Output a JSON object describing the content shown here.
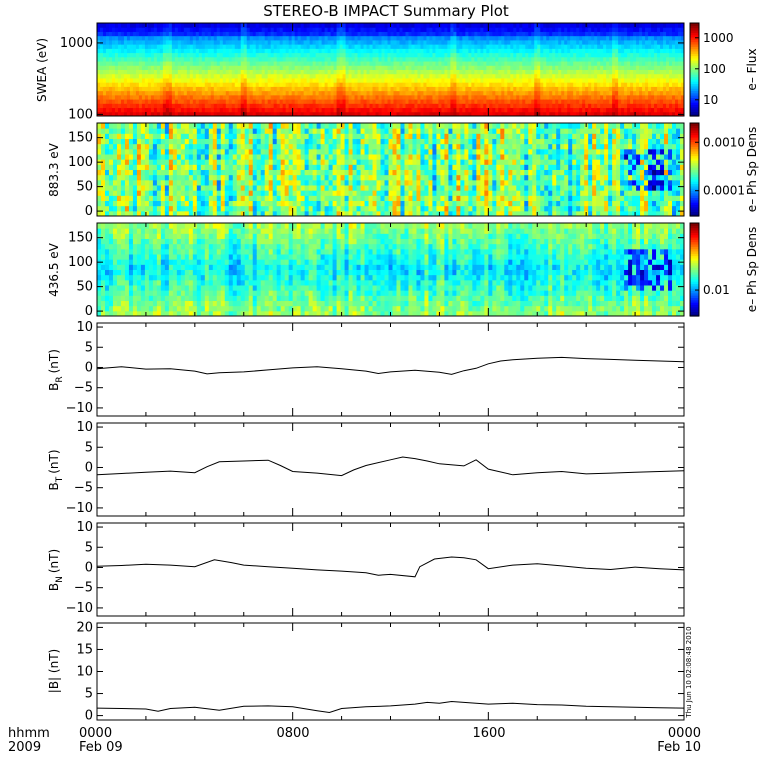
{
  "title": "STEREO-B IMPACT Summary Plot",
  "stamp": "Thu Jun 10 02:08:48 2010",
  "x_axis": {
    "row1": [
      "0000",
      "0800",
      "1600",
      "0000"
    ],
    "row2": [
      "Feb 09",
      "",
      "",
      "Feb 10"
    ],
    "prefix_row1": "hhmm",
    "prefix_row2": "2009"
  },
  "colors": {
    "jet": [
      "#00007f",
      "#0000ff",
      "#007fff",
      "#00ffff",
      "#7fff7f",
      "#ffff00",
      "#ff7f00",
      "#ff0000",
      "#7f0000"
    ]
  },
  "chart_data": [
    {
      "type": "heatmap",
      "id": "swea",
      "ylabel": "SWEA (eV)",
      "ylog": true,
      "ylim": [
        95,
        1900
      ],
      "yticks": [
        {
          "v": 100,
          "label": "100"
        },
        {
          "v": 1000,
          "label": "1000"
        }
      ],
      "xlim": [
        0,
        24
      ],
      "colorbar": {
        "label": "e– Flux",
        "log": true,
        "range": [
          3,
          3000
        ],
        "ticks": [
          {
            "v": 10,
            "label": "10"
          },
          {
            "v": 100,
            "label": "100"
          },
          {
            "v": 1000,
            "label": "1000"
          }
        ]
      },
      "spikes_hours": [
        2.9,
        6.0,
        10.0,
        14.6,
        18.0,
        21.2
      ]
    },
    {
      "type": "heatmap",
      "id": "pad883",
      "ylabel": "883.3 eV",
      "ylim": [
        -10,
        180
      ],
      "yticks": [
        {
          "v": 0,
          "label": "0"
        },
        {
          "v": 50,
          "label": "50"
        },
        {
          "v": 100,
          "label": "100"
        },
        {
          "v": 150,
          "label": "150"
        }
      ],
      "xlim": [
        0,
        24
      ],
      "colorbar": {
        "label": "e– Ph Sp Dens",
        "log": true,
        "range": [
          3e-05,
          0.0025
        ],
        "ticks": [
          {
            "v": 0.0001,
            "label": "0.0001"
          },
          {
            "v": 0.001,
            "label": "0.0010"
          }
        ]
      }
    },
    {
      "type": "heatmap",
      "id": "pad436",
      "ylabel": "436.5 eV",
      "ylim": [
        -10,
        180
      ],
      "yticks": [
        {
          "v": 0,
          "label": "0"
        },
        {
          "v": 50,
          "label": "50"
        },
        {
          "v": 100,
          "label": "100"
        },
        {
          "v": 150,
          "label": "150"
        }
      ],
      "xlim": [
        0,
        24
      ],
      "colorbar": {
        "label": "e– Ph Sp Dens",
        "log": true,
        "range": [
          0.005,
          0.06
        ],
        "ticks": [
          {
            "v": 0.01,
            "label": "0.01"
          }
        ]
      }
    },
    {
      "type": "line",
      "id": "br",
      "ylabel": "B",
      "ysub": "R",
      "yunit": "(nT)",
      "ylim": [
        -12,
        11
      ],
      "yticks": [
        -10,
        -5,
        0,
        5,
        10
      ],
      "xlim": [
        0,
        24
      ],
      "x": [
        0,
        1,
        2,
        3,
        4,
        4.5,
        5,
        6,
        7,
        8,
        9,
        10,
        11,
        11.5,
        12,
        13,
        14,
        14.5,
        15,
        15.5,
        16,
        16.5,
        17,
        18,
        19,
        20,
        21,
        22,
        23,
        24
      ],
      "y": [
        -0.3,
        0.2,
        -0.4,
        -0.3,
        -0.9,
        -1.6,
        -1.3,
        -1.1,
        -0.6,
        -0.1,
        0.2,
        -0.3,
        -0.9,
        -1.5,
        -1.1,
        -0.7,
        -1.2,
        -1.7,
        -0.8,
        -0.2,
        0.9,
        1.6,
        1.9,
        2.3,
        2.5,
        2.2,
        2.0,
        1.8,
        1.6,
        1.4
      ]
    },
    {
      "type": "line",
      "id": "bt",
      "ylabel": "B",
      "ysub": "T",
      "yunit": "(nT)",
      "ylim": [
        -12,
        11
      ],
      "yticks": [
        -10,
        -5,
        0,
        5,
        10
      ],
      "xlim": [
        0,
        24
      ],
      "x": [
        0,
        1,
        2,
        3,
        4,
        4.5,
        5,
        6,
        7,
        7.5,
        8,
        9,
        10,
        10.5,
        11,
        12,
        12.5,
        13,
        13.5,
        14,
        15,
        15.5,
        16,
        17,
        18,
        19,
        20,
        21,
        22,
        23,
        24
      ],
      "y": [
        -1.8,
        -1.5,
        -1.2,
        -0.9,
        -1.3,
        0.2,
        1.4,
        1.6,
        1.8,
        0.5,
        -1.0,
        -1.4,
        -2.0,
        -0.6,
        0.5,
        1.9,
        2.6,
        2.2,
        1.6,
        0.9,
        0.4,
        1.9,
        -0.4,
        -1.8,
        -1.3,
        -1.0,
        -1.6,
        -1.4,
        -1.2,
        -1.0,
        -0.8
      ]
    },
    {
      "type": "line",
      "id": "bn",
      "ylabel": "B",
      "ysub": "N",
      "yunit": "(nT)",
      "ylim": [
        -12,
        11
      ],
      "yticks": [
        -10,
        -5,
        0,
        5,
        10
      ],
      "xlim": [
        0,
        24
      ],
      "x": [
        0,
        1,
        2,
        3,
        4,
        4.8,
        5.5,
        6,
        7,
        8,
        9,
        10,
        11,
        11.5,
        12,
        13,
        13.2,
        13.8,
        14.5,
        15,
        15.5,
        16,
        17,
        18,
        19,
        20,
        21,
        22,
        23,
        24
      ],
      "y": [
        0.3,
        0.5,
        0.8,
        0.6,
        0.2,
        1.9,
        1.2,
        0.6,
        0.2,
        -0.2,
        -0.6,
        -0.9,
        -1.3,
        -1.9,
        -1.7,
        -2.3,
        0.2,
        2.1,
        2.6,
        2.4,
        1.9,
        -0.3,
        0.6,
        0.9,
        0.4,
        -0.2,
        -0.5,
        0.1,
        -0.3,
        -0.6
      ]
    },
    {
      "type": "line",
      "id": "bmag",
      "ylabel": "|B| (nT)",
      "ylim": [
        -1,
        21
      ],
      "yticks": [
        0,
        5,
        10,
        15,
        20
      ],
      "xlim": [
        0,
        24
      ],
      "x": [
        0,
        1,
        2,
        2.5,
        3,
        4,
        5,
        6,
        7,
        8,
        9,
        9.5,
        10,
        11,
        12,
        13,
        13.5,
        14,
        14.5,
        15,
        16,
        17,
        18,
        19,
        20,
        21,
        22,
        23,
        24
      ],
      "y": [
        1.7,
        1.6,
        1.5,
        1.0,
        1.6,
        1.9,
        1.2,
        2.1,
        2.2,
        2.0,
        1.1,
        0.7,
        1.6,
        2.0,
        2.2,
        2.6,
        3.0,
        2.8,
        3.2,
        3.0,
        2.6,
        2.8,
        2.5,
        2.4,
        2.1,
        2.0,
        1.9,
        1.8,
        1.7
      ]
    }
  ]
}
